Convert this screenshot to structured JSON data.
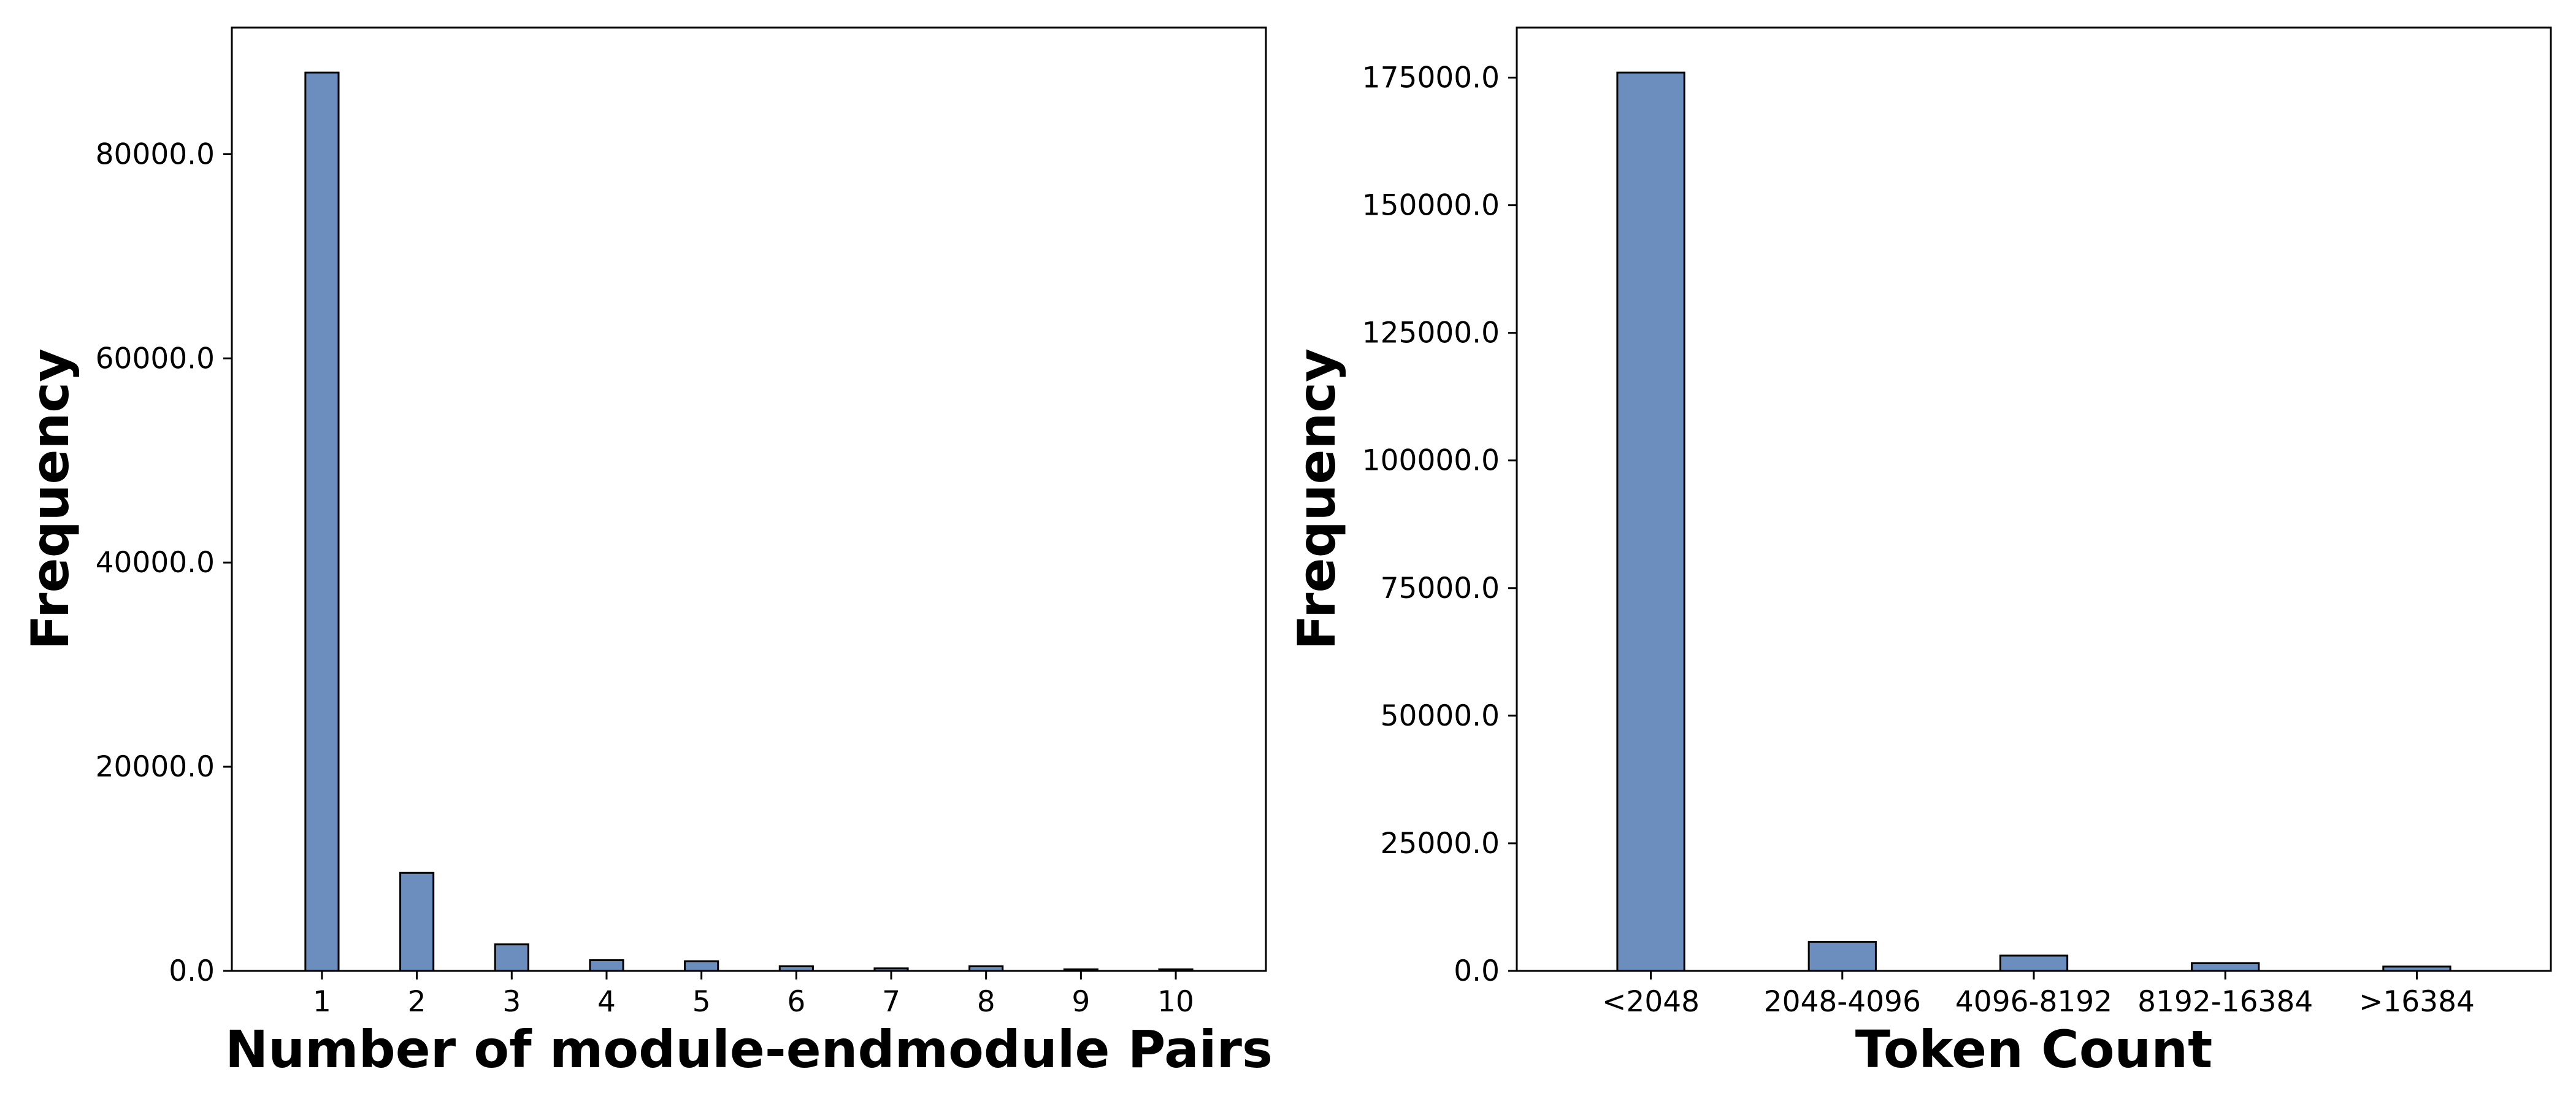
{
  "chart_data": [
    {
      "type": "bar",
      "title": "",
      "xlabel": "Number of module-endmodule Pairs",
      "ylabel": "Frequency",
      "categories": [
        "1",
        "2",
        "3",
        "4",
        "5",
        "6",
        "7",
        "8",
        "9",
        "10"
      ],
      "values": [
        88000,
        9600,
        2600,
        1050,
        950,
        450,
        250,
        450,
        150,
        150
      ],
      "yticks": [
        "0.0",
        "20000.0",
        "40000.0",
        "60000.0",
        "80000.0"
      ],
      "ylim": [
        0,
        92400
      ],
      "grid": false,
      "bar_color": "#6b8ebf",
      "edge_color": "#000000"
    },
    {
      "type": "bar",
      "title": "",
      "xlabel": "Token Count",
      "ylabel": "Frequency",
      "categories": [
        "<2048",
        "2048-4096",
        "4096-8192",
        "8192-16384",
        ">16384"
      ],
      "values": [
        176000,
        5700,
        3000,
        1500,
        850
      ],
      "yticks": [
        "0.0",
        "25000.0",
        "50000.0",
        "75000.0",
        "100000.0",
        "125000.0",
        "150000.0",
        "175000.0"
      ],
      "ylim": [
        0,
        184800
      ],
      "grid": false,
      "bar_color": "#6b8ebf",
      "edge_color": "#000000"
    }
  ]
}
